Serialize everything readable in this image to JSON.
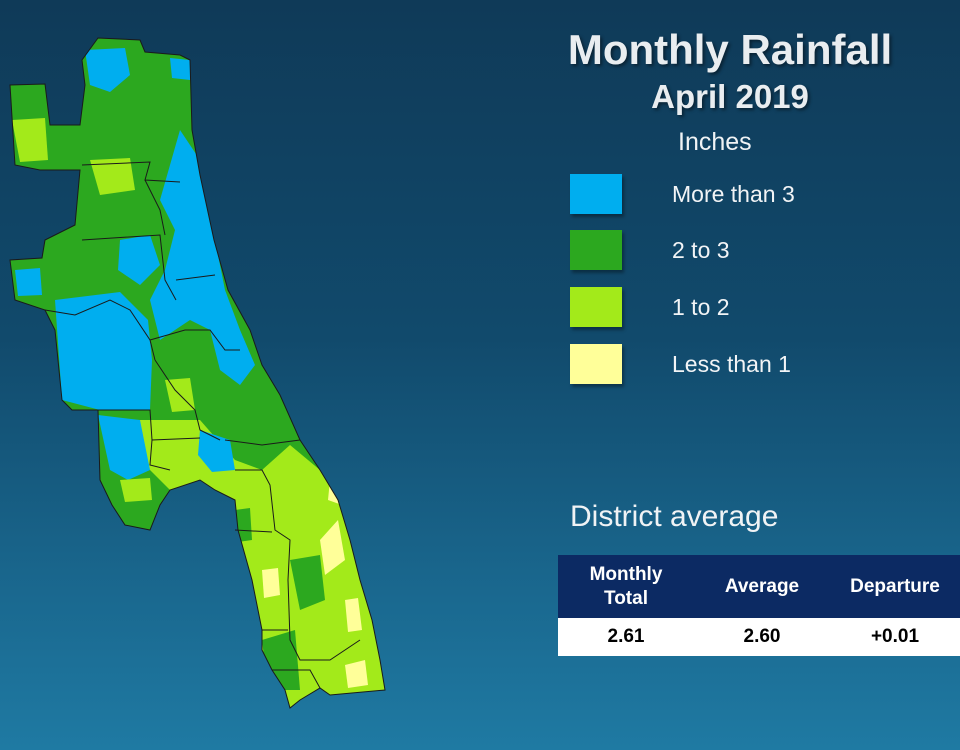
{
  "title": "Monthly Rainfall",
  "period": "April 2019",
  "legend": {
    "units": "Inches",
    "items": [
      {
        "label": "More than 3",
        "color": "#00aeef"
      },
      {
        "label": "2 to 3",
        "color": "#2ca81f"
      },
      {
        "label": "1 to 2",
        "color": "#a3ea1a"
      },
      {
        "label": "Less than 1",
        "color": "#ffff99"
      }
    ]
  },
  "district_average": {
    "heading": "District average",
    "columns": [
      "Monthly\nTotal",
      "Average",
      "Departure"
    ],
    "values": [
      "2.61",
      "2.60",
      "+0.01"
    ]
  },
  "colors": {
    "background_top": "#0f3a58",
    "background_bottom": "#1f7aa3",
    "table_header": "#0c2a63",
    "county_border": "#1a1a1a"
  }
}
